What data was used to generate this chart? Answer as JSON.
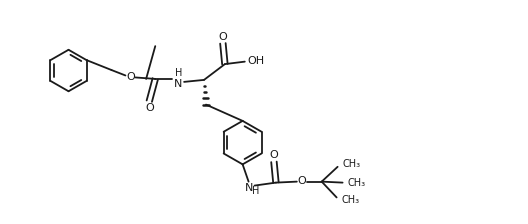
{
  "background_color": "#ffffff",
  "line_color": "#1a1a1a",
  "line_width": 1.3,
  "font_size": 8,
  "fig_width": 5.28,
  "fig_height": 2.24,
  "dpi": 100,
  "xlim": [
    0,
    10.56
  ],
  "ylim": [
    0,
    4.48
  ]
}
